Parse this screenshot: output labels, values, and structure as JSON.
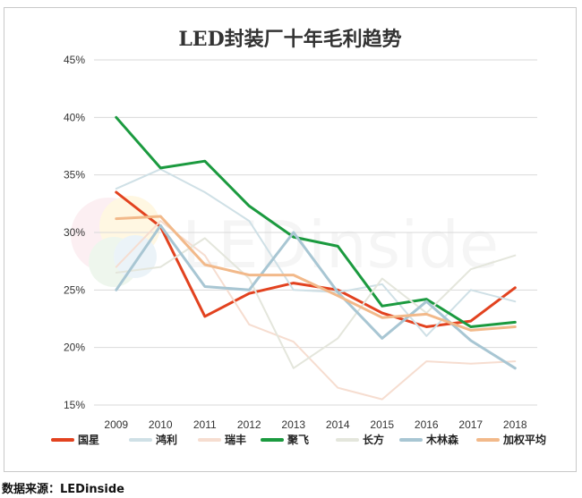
{
  "chart_data": {
    "type": "line",
    "title": "LED封装厂十年毛利趋势",
    "x": [
      "2009",
      "2010",
      "2011",
      "2012",
      "2013",
      "2014",
      "2015",
      "2016",
      "2017",
      "2018"
    ],
    "ylim": [
      15,
      45
    ],
    "yticks": [
      "15%",
      "20%",
      "25%",
      "30%",
      "35%",
      "40%",
      "45%"
    ],
    "ytick_values": [
      15,
      20,
      25,
      30,
      35,
      40,
      45
    ],
    "grid": true,
    "legend_position": "bottom",
    "series": [
      {
        "name": "国星",
        "color": "#e2421f",
        "width": 3,
        "values": [
          33.5,
          30.5,
          22.7,
          24.7,
          25.6,
          25.0,
          23.0,
          21.8,
          22.3,
          25.2
        ]
      },
      {
        "name": "鸿利",
        "color": "#cfe0e6",
        "width": 2,
        "values": [
          33.8,
          35.5,
          33.5,
          31.0,
          25.0,
          24.8,
          25.5,
          21.0,
          25.0,
          24.0
        ]
      },
      {
        "name": "瑞丰",
        "color": "#f6ddd0",
        "width": 2,
        "values": [
          27.0,
          31.0,
          28.0,
          22.0,
          20.5,
          16.5,
          15.5,
          18.8,
          18.6,
          18.8
        ]
      },
      {
        "name": "聚飞",
        "color": "#1b9a3f",
        "width": 3,
        "values": [
          40.0,
          35.6,
          36.2,
          32.3,
          29.6,
          28.8,
          23.6,
          24.2,
          21.8,
          22.2
        ]
      },
      {
        "name": "长方",
        "color": "#e4e6dc",
        "width": 2,
        "values": [
          26.5,
          27.0,
          29.5,
          26.0,
          18.2,
          20.8,
          26.0,
          23.0,
          26.8,
          28.0
        ]
      },
      {
        "name": "木林森",
        "color": "#a8c6d3",
        "width": 3,
        "values": [
          25.0,
          30.6,
          25.3,
          25.0,
          30.0,
          24.8,
          20.8,
          24.0,
          20.6,
          18.2
        ]
      },
      {
        "name": "加权平均",
        "color": "#f2b98a",
        "width": 3,
        "values": [
          31.2,
          31.4,
          27.2,
          26.3,
          26.3,
          24.5,
          22.6,
          22.9,
          21.5,
          21.8
        ]
      }
    ]
  },
  "watermark": {
    "text": "LEDinside"
  },
  "source": {
    "label": "数据来源：LEDinside"
  }
}
